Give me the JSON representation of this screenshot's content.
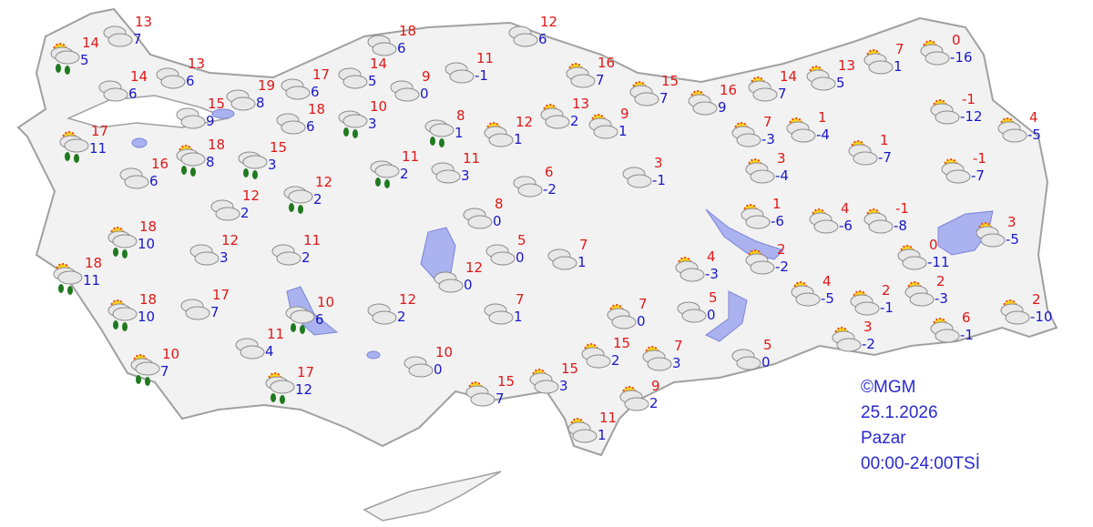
{
  "map": {
    "land_color": "#f2f2f2",
    "border_color": "#a0a0a0",
    "lake_color": "#aab2f0"
  },
  "legend_colors": {
    "high": "#e01818",
    "low": "#1818c8"
  },
  "stamp": {
    "source": "©MGM",
    "date": "25.1.2026",
    "day": "Pazar",
    "period": "00:00-24:00TSİ"
  },
  "stations": [
    {
      "icon": "sun-rain",
      "high": "14",
      "low": "5"
    },
    {
      "icon": "cloudy",
      "high": "13",
      "low": "7"
    },
    {
      "icon": "cloudy",
      "high": "14",
      "low": "6"
    },
    {
      "icon": "cloudy",
      "high": "13",
      "low": "6"
    },
    {
      "icon": "sun-rain",
      "high": "17",
      "low": "11"
    },
    {
      "icon": "cloudy",
      "high": "15",
      "low": "9"
    },
    {
      "icon": "cloudy",
      "high": "19",
      "low": "8"
    },
    {
      "icon": "cloudy",
      "high": "17",
      "low": "6"
    },
    {
      "icon": "cloudy",
      "high": "14",
      "low": "5"
    },
    {
      "icon": "cloudy",
      "high": "18",
      "low": "6"
    },
    {
      "icon": "cloudy",
      "high": "18",
      "low": "6"
    },
    {
      "icon": "rain",
      "high": "10",
      "low": "3"
    },
    {
      "icon": "sun-rain",
      "high": "18",
      "low": "8"
    },
    {
      "icon": "cloudy",
      "high": "16",
      "low": "6"
    },
    {
      "icon": "rain",
      "high": "15",
      "low": "3"
    },
    {
      "icon": "rain",
      "high": "12",
      "low": "2"
    },
    {
      "icon": "cloudy",
      "high": "12",
      "low": "2"
    },
    {
      "icon": "cloudy",
      "high": "9",
      "low": "0"
    },
    {
      "icon": "cloudy",
      "high": "11",
      "low": "-1"
    },
    {
      "icon": "rain",
      "high": "8",
      "low": "1"
    },
    {
      "icon": "rain",
      "high": "11",
      "low": "2"
    },
    {
      "icon": "cloudy",
      "high": "11",
      "low": "3"
    },
    {
      "icon": "cloudy",
      "high": "12",
      "low": "6"
    },
    {
      "icon": "partly-cloudy",
      "high": "12",
      "low": "1"
    },
    {
      "icon": "partly-cloudy",
      "high": "13",
      "low": "2"
    },
    {
      "icon": "partly-cloudy",
      "high": "9",
      "low": "1"
    },
    {
      "icon": "partly-cloudy",
      "high": "16",
      "low": "7"
    },
    {
      "icon": "partly-cloudy",
      "high": "15",
      "low": "7"
    },
    {
      "icon": "partly-cloudy",
      "high": "16",
      "low": "9"
    },
    {
      "icon": "cloudy",
      "high": "6",
      "low": "-2"
    },
    {
      "icon": "cloudy",
      "high": "3",
      "low": "-1"
    },
    {
      "icon": "cloudy",
      "high": "8",
      "low": "0"
    },
    {
      "icon": "cloudy",
      "high": "5",
      "low": "0"
    },
    {
      "icon": "cloudy",
      "high": "7",
      "low": "1"
    },
    {
      "icon": "cloudy",
      "high": "12",
      "low": "0"
    },
    {
      "icon": "sun-rain",
      "high": "18",
      "low": "10"
    },
    {
      "icon": "cloudy",
      "high": "12",
      "low": "3"
    },
    {
      "icon": "cloudy",
      "high": "11",
      "low": "2"
    },
    {
      "icon": "sun-rain",
      "high": "18",
      "low": "11"
    },
    {
      "icon": "sun-rain",
      "high": "18",
      "low": "10"
    },
    {
      "icon": "cloudy",
      "high": "17",
      "low": "7"
    },
    {
      "icon": "rain",
      "high": "10",
      "low": "6"
    },
    {
      "icon": "cloudy",
      "high": "12",
      "low": "2"
    },
    {
      "icon": "cloudy",
      "high": "7",
      "low": "1"
    },
    {
      "icon": "cloudy",
      "high": "11",
      "low": "4"
    },
    {
      "icon": "sun-rain",
      "high": "10",
      "low": "7"
    },
    {
      "icon": "cloudy",
      "high": "10",
      "low": "0"
    },
    {
      "icon": "sun-rain",
      "high": "17",
      "low": "12"
    },
    {
      "icon": "partly-cloudy",
      "high": "15",
      "low": "7"
    },
    {
      "icon": "partly-cloudy",
      "high": "15",
      "low": "3"
    },
    {
      "icon": "partly-cloudy",
      "high": "15",
      "low": "2"
    },
    {
      "icon": "partly-cloudy",
      "high": "7",
      "low": "0"
    },
    {
      "icon": "partly-cloudy",
      "high": "7",
      "low": "3"
    },
    {
      "icon": "partly-cloudy",
      "high": "9",
      "low": "2"
    },
    {
      "icon": "partly-cloudy",
      "high": "11",
      "low": "1"
    },
    {
      "icon": "cloudy",
      "high": "5",
      "low": "0"
    },
    {
      "icon": "cloudy",
      "high": "5",
      "low": "0"
    },
    {
      "icon": "partly-cloudy",
      "high": "14",
      "low": "7"
    },
    {
      "icon": "partly-cloudy",
      "high": "13",
      "low": "5"
    },
    {
      "icon": "partly-cloudy",
      "high": "7",
      "low": "1"
    },
    {
      "icon": "partly-cloudy",
      "high": "0",
      "low": "-16"
    },
    {
      "icon": "partly-cloudy",
      "high": "7",
      "low": "-3"
    },
    {
      "icon": "partly-cloudy",
      "high": "1",
      "low": "-4"
    },
    {
      "icon": "partly-cloudy",
      "high": "1",
      "low": "-7"
    },
    {
      "icon": "partly-cloudy",
      "high": "-1",
      "low": "-12"
    },
    {
      "icon": "partly-cloudy",
      "high": "4",
      "low": "-5"
    },
    {
      "icon": "partly-cloudy",
      "high": "-1",
      "low": "-7"
    },
    {
      "icon": "partly-cloudy",
      "high": "3",
      "low": "-4"
    },
    {
      "icon": "partly-cloudy",
      "high": "1",
      "low": "-6"
    },
    {
      "icon": "partly-cloudy",
      "high": "4",
      "low": "-6"
    },
    {
      "icon": "partly-cloudy",
      "high": "-1",
      "low": "-8"
    },
    {
      "icon": "partly-cloudy",
      "high": "3",
      "low": "-5"
    },
    {
      "icon": "partly-cloudy",
      "high": "4",
      "low": "-3"
    },
    {
      "icon": "partly-cloudy",
      "high": "2",
      "low": "-2"
    },
    {
      "icon": "partly-cloudy",
      "high": "0",
      "low": "-11"
    },
    {
      "icon": "partly-cloudy",
      "high": "4",
      "low": "-5"
    },
    {
      "icon": "partly-cloudy",
      "high": "2",
      "low": "-1"
    },
    {
      "icon": "partly-cloudy",
      "high": "2",
      "low": "-3"
    },
    {
      "icon": "partly-cloudy",
      "high": "2",
      "low": "-10"
    },
    {
      "icon": "partly-cloudy",
      "high": "3",
      "low": "-2"
    },
    {
      "icon": "partly-cloudy",
      "high": "6",
      "low": "-1"
    }
  ]
}
